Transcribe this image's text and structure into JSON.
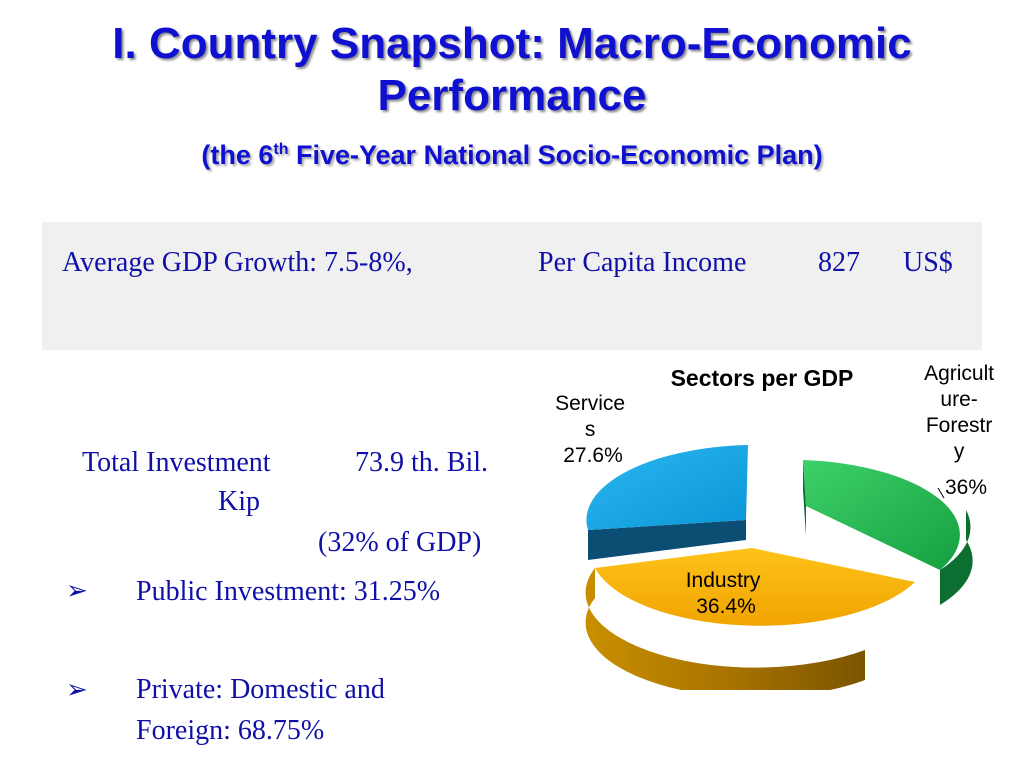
{
  "slide": {
    "title_line1": "I. Country Snapshot: Macro-Economic",
    "title_line2": "Performance",
    "subtitle_pre": "(the 6",
    "subtitle_sup": "th",
    "subtitle_post": " Five-Year National Socio-Economic Plan)"
  },
  "summary": {
    "gdp_growth": "Average GDP Growth: 7.5-8%,",
    "income_label": "Per Capita Income",
    "income_value": "827",
    "income_unit": "US$"
  },
  "investment": {
    "label": "Total Investment",
    "value": "73.9 th. Bil.",
    "unit": "Kip",
    "share": "(32% of GDP)",
    "bullet_symbol": "➢",
    "items": [
      {
        "line1": "Public Investment:  31.25%",
        "line2": ""
      },
      {
        "line1": "Private: Domestic and",
        "line2": "Foreign: 68.75%"
      }
    ]
  },
  "chart_data": {
    "type": "pie",
    "title": "Sectors per GDP",
    "slices": [
      {
        "label_lines": [
          "Agricult",
          "ure-",
          "Forestr",
          "y"
        ],
        "value_label": "36%",
        "value": 36,
        "color": "#22b14c"
      },
      {
        "label_lines": [
          "Industry"
        ],
        "value_label": "36.4%",
        "value": 36.4,
        "color": "#ffb400"
      },
      {
        "label_lines": [
          "Service",
          "s"
        ],
        "value_label": "27.6%",
        "value": 27.6,
        "color": "#1aa7e6"
      }
    ]
  }
}
